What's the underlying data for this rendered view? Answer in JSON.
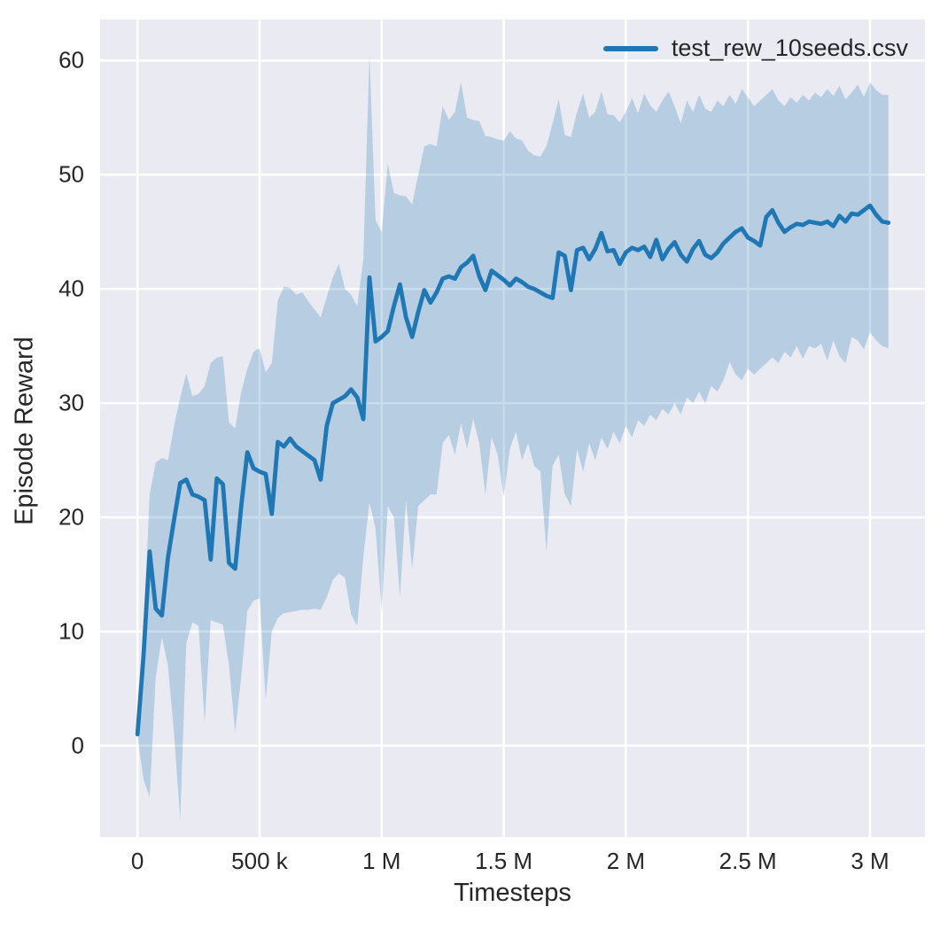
{
  "figure": {
    "background": "#ffffff"
  },
  "chart_data": {
    "type": "line",
    "title": "",
    "xlabel": "Timesteps",
    "ylabel": "Episode Reward",
    "grid": true,
    "legend": {
      "position": "upper right",
      "entries": [
        {
          "label": "test_rew_10seeds.csv",
          "color": "#1f77b4"
        }
      ]
    },
    "x_unit": "thousand timesteps",
    "xlim": [
      -153000,
      3225000
    ],
    "ylim": [
      -8,
      63.6
    ],
    "x_ticks": [
      {
        "value": 0,
        "label": "0"
      },
      {
        "value": 500000,
        "label": "500 k"
      },
      {
        "value": 1000000,
        "label": "1 M"
      },
      {
        "value": 1500000,
        "label": "1.5 M"
      },
      {
        "value": 2000000,
        "label": "2 M"
      },
      {
        "value": 2500000,
        "label": "2.5 M"
      },
      {
        "value": 3000000,
        "label": "3 M"
      }
    ],
    "y_ticks": [
      {
        "value": 0,
        "label": "0"
      },
      {
        "value": 10,
        "label": "10"
      },
      {
        "value": 20,
        "label": "20"
      },
      {
        "value": 30,
        "label": "30"
      },
      {
        "value": 40,
        "label": "40"
      },
      {
        "value": 50,
        "label": "50"
      },
      {
        "value": 60,
        "label": "60"
      }
    ],
    "styles": {
      "axes_background": "#eaeaf2",
      "grid_color": "#ffffff",
      "grid_width": 2.5,
      "line_color": "#1f77b4",
      "line_width": 4.8,
      "band_fill": "rgba(31,119,180,0.25)",
      "text_color": "#262626"
    },
    "x_k": [
      0,
      25,
      50,
      75,
      100,
      125,
      150,
      175,
      200,
      225,
      250,
      275,
      300,
      325,
      350,
      375,
      400,
      425,
      450,
      475,
      500,
      525,
      550,
      575,
      600,
      625,
      650,
      675,
      700,
      725,
      750,
      775,
      800,
      825,
      850,
      875,
      900,
      925,
      950,
      975,
      1000,
      1025,
      1050,
      1075,
      1100,
      1125,
      1150,
      1175,
      1200,
      1225,
      1250,
      1275,
      1300,
      1325,
      1350,
      1375,
      1400,
      1425,
      1450,
      1475,
      1500,
      1525,
      1550,
      1575,
      1600,
      1625,
      1650,
      1675,
      1700,
      1725,
      1750,
      1775,
      1800,
      1825,
      1850,
      1875,
      1900,
      1925,
      1950,
      1975,
      2000,
      2025,
      2050,
      2075,
      2100,
      2125,
      2150,
      2175,
      2200,
      2225,
      2250,
      2275,
      2300,
      2325,
      2350,
      2375,
      2400,
      2425,
      2450,
      2475,
      2500,
      2525,
      2550,
      2575,
      2600,
      2625,
      2650,
      2675,
      2700,
      2725,
      2750,
      2775,
      2800,
      2825,
      2850,
      2875,
      2900,
      2925,
      2950,
      2975,
      3000,
      3025,
      3050,
      3075
    ],
    "series": [
      {
        "name": "test_rew_10seeds.csv",
        "mean": [
          1.0,
          8.0,
          17.0,
          12.0,
          11.4,
          16.5,
          19.8,
          23.0,
          23.3,
          22.0,
          21.8,
          21.5,
          16.3,
          23.4,
          22.9,
          16.0,
          15.5,
          21.0,
          25.7,
          24.3,
          24.0,
          23.8,
          20.3,
          26.6,
          26.2,
          26.9,
          26.2,
          25.8,
          25.4,
          25.0,
          23.3,
          28.0,
          30.0,
          30.3,
          30.6,
          31.2,
          30.5,
          28.6,
          41.0,
          35.4,
          35.8,
          36.3,
          38.5,
          40.4,
          37.5,
          35.8,
          38.0,
          39.9,
          38.8,
          39.7,
          40.9,
          41.1,
          40.9,
          41.9,
          42.3,
          42.9,
          41.1,
          39.9,
          41.6,
          41.2,
          40.8,
          40.3,
          40.9,
          40.6,
          40.2,
          40.0,
          39.7,
          39.4,
          39.2,
          43.2,
          42.9,
          39.9,
          43.4,
          43.6,
          42.6,
          43.5,
          44.9,
          43.3,
          43.4,
          42.2,
          43.2,
          43.6,
          43.4,
          43.7,
          42.8,
          44.3,
          42.6,
          43.5,
          44.1,
          43.0,
          42.4,
          43.5,
          44.2,
          43.0,
          42.7,
          43.2,
          44.0,
          44.5,
          45.0,
          45.3,
          44.5,
          44.2,
          43.8,
          46.3,
          46.9,
          45.8,
          45.0,
          45.4,
          45.7,
          45.6,
          45.9,
          45.8,
          45.7,
          45.9,
          45.5,
          46.4,
          45.9,
          46.6,
          46.5,
          46.9,
          47.3,
          46.5,
          45.9,
          45.8
        ],
        "band_lower": [
          0.8,
          -3.0,
          -4.5,
          6.0,
          9.5,
          7.0,
          1.0,
          -6.5,
          9.0,
          10.8,
          10.5,
          2.0,
          11.0,
          10.8,
          10.6,
          7.0,
          1.2,
          6.0,
          11.8,
          12.7,
          12.9,
          4.0,
          10.0,
          11.2,
          11.6,
          11.7,
          11.8,
          11.9,
          11.9,
          12.0,
          11.9,
          13.0,
          14.5,
          15.1,
          14.7,
          11.5,
          10.5,
          16.5,
          21.3,
          19.0,
          11.8,
          21.0,
          20.0,
          13.0,
          21.5,
          15.5,
          21.0,
          21.5,
          22.0,
          22.0,
          26.5,
          27.2,
          25.5,
          28.2,
          26.0,
          28.6,
          26.5,
          22.0,
          27.0,
          25.5,
          21.8,
          26.0,
          27.5,
          25.0,
          26.5,
          24.5,
          24.0,
          17.0,
          24.5,
          25.5,
          22.0,
          21.0,
          26.0,
          24.0,
          26.5,
          25.0,
          27.0,
          26.0,
          27.5,
          26.5,
          28.0,
          27.0,
          28.5,
          28.0,
          29.0,
          28.5,
          29.5,
          29.0,
          30.0,
          29.0,
          30.5,
          30.0,
          31.0,
          30.0,
          31.5,
          31.0,
          32.0,
          33.6,
          32.5,
          32.0,
          33.0,
          32.5,
          33.0,
          33.5,
          34.0,
          33.5,
          34.5,
          34.0,
          35.0,
          33.9,
          35.0,
          34.8,
          35.2,
          33.7,
          35.5,
          34.1,
          33.5,
          35.8,
          35.5,
          34.7,
          36.2,
          35.5,
          35.0,
          34.8
        ],
        "band_upper": [
          1.3,
          10.0,
          22.0,
          24.8,
          25.2,
          25.0,
          28.0,
          30.5,
          32.6,
          30.6,
          30.8,
          31.5,
          33.5,
          34.0,
          34.1,
          28.3,
          27.8,
          31.0,
          33.0,
          34.5,
          34.8,
          32.7,
          33.5,
          39.0,
          40.2,
          40.1,
          39.5,
          39.7,
          38.9,
          38.2,
          37.5,
          39.3,
          41.0,
          42.2,
          40.0,
          39.5,
          38.5,
          42.6,
          60.5,
          46.0,
          45.0,
          51.0,
          48.4,
          48.2,
          48.1,
          47.4,
          50.0,
          52.5,
          52.7,
          52.5,
          56.0,
          54.8,
          55.5,
          58.1,
          55.0,
          54.8,
          54.7,
          53.4,
          53.3,
          53.1,
          53.0,
          53.8,
          53.2,
          53.0,
          52.1,
          51.7,
          51.6,
          52.5,
          54.5,
          56.6,
          53.5,
          53.3,
          55.5,
          57.1,
          55.0,
          55.5,
          57.3,
          55.3,
          55.2,
          54.6,
          55.5,
          56.7,
          55.4,
          57.1,
          56.1,
          55.5,
          56.5,
          57.3,
          56.0,
          54.5,
          56.5,
          55.5,
          57.0,
          55.8,
          55.5,
          56.5,
          56.0,
          57.0,
          56.2,
          57.5,
          56.8,
          56.0,
          56.5,
          57.0,
          57.5,
          56.5,
          56.0,
          56.8,
          56.3,
          57.0,
          56.5,
          57.2,
          56.8,
          57.5,
          56.9,
          57.8,
          56.6,
          57.2,
          57.9,
          56.8,
          58.1,
          57.4,
          57.0,
          57.0
        ]
      }
    ]
  }
}
